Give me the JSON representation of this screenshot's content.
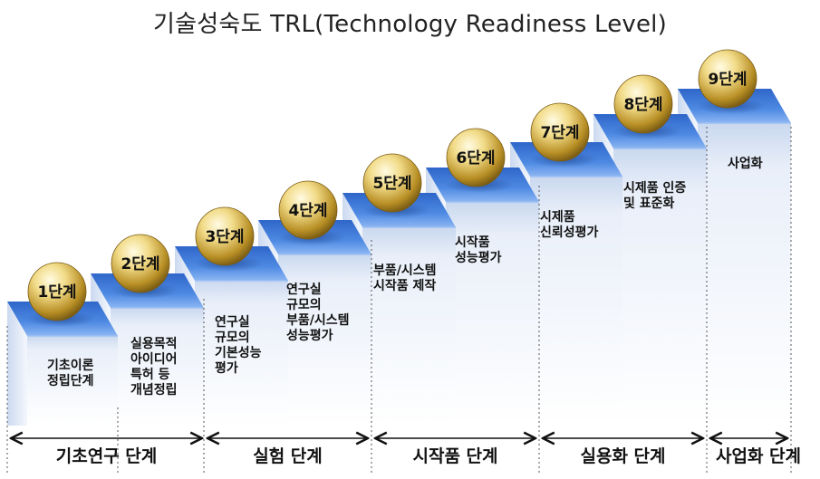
{
  "title": "기술성숙도 TRL(Technology Readiness Level)",
  "steps": [
    {
      "label": "1단계",
      "desc": "기초이론\n정립단계"
    },
    {
      "label": "2단계",
      "desc": "실용목적\n아이디어\n특허 등\n개념정립"
    },
    {
      "label": "3단계",
      "desc": "연구실\n규모의\n기본성능\n평가"
    },
    {
      "label": "4단계",
      "desc": "연구실\n규모의\n부품/시스템\n성능평가"
    },
    {
      "label": "5단계",
      "desc": "부품/시스템\n시작품 제작"
    },
    {
      "label": "6단계",
      "desc": "시작품\n성능평가"
    },
    {
      "label": "7단계",
      "desc": "시제품\n신뢰성평가"
    },
    {
      "label": "8단계",
      "desc": "시제품 인증\n및 표준화"
    },
    {
      "label": "9단계",
      "desc": "사업화"
    }
  ],
  "phases": [
    {
      "label": "기초연구 단계"
    },
    {
      "label": "실험 단계"
    },
    {
      "label": "시작품 단계"
    },
    {
      "label": "실용화 단계"
    },
    {
      "label": "사업화 단계"
    }
  ],
  "colors": {
    "stair_top": "#3a78d8",
    "stair_top_light": "#6fa0ee",
    "stair_front": "#dfe8f6",
    "orb_gold": "#c9a53a",
    "orb_light": "#fff6cc",
    "arrow": "#111111"
  }
}
